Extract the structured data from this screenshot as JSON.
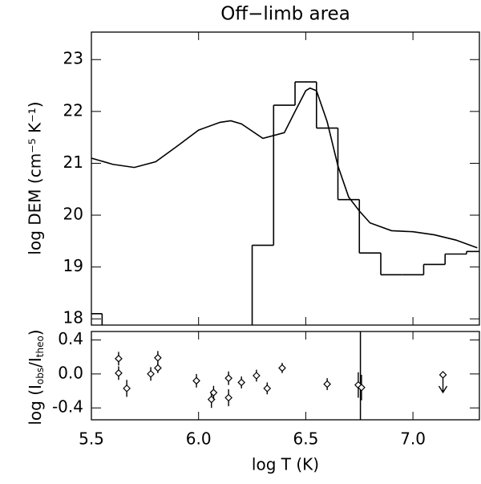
{
  "chart_data": [
    {
      "type": "line",
      "title": "Off−limb area",
      "ylabel": "log DEM (cm⁻⁵ K⁻¹)",
      "xlim": [
        5.5,
        7.31
      ],
      "ylim": [
        17.88,
        23.53
      ],
      "yticks": [
        18,
        19,
        20,
        21,
        22,
        23
      ],
      "color": "#000000",
      "series": [
        {
          "x": [
            5.5,
            5.6,
            5.7,
            5.8,
            5.9,
            6.0,
            6.1,
            6.15,
            6.2,
            6.3,
            6.4,
            6.45,
            6.5,
            6.52,
            6.55,
            6.6,
            6.65,
            6.7,
            6.75,
            6.8,
            6.9,
            7.0,
            7.1,
            7.2,
            7.3
          ],
          "values": [
            21.1,
            20.98,
            20.92,
            21.03,
            21.33,
            21.64,
            21.79,
            21.82,
            21.76,
            21.48,
            21.59,
            22.0,
            22.4,
            22.45,
            22.4,
            21.8,
            20.95,
            20.35,
            20.08,
            19.85,
            19.7,
            19.68,
            19.62,
            19.52,
            19.37
          ]
        },
        {
          "bins": [
            5.45,
            5.55,
            5.65,
            5.75,
            5.85,
            5.95,
            6.05,
            6.15,
            6.25,
            6.35,
            6.45,
            6.55,
            6.65,
            6.75,
            6.85,
            6.95,
            7.05,
            7.15,
            7.25,
            7.35
          ],
          "values": [
            18.1,
            null,
            null,
            null,
            null,
            null,
            null,
            null,
            19.42,
            22.12,
            22.57,
            21.68,
            20.3,
            19.27,
            18.85,
            18.85,
            19.05,
            19.25,
            19.3
          ]
        }
      ]
    },
    {
      "type": "scatter",
      "xlabel": "log T (K)",
      "ylabel": [
        "log (I",
        "obs",
        "/I",
        "theo",
        ")"
      ],
      "xlim": [
        5.5,
        7.31
      ],
      "ylim": [
        -0.54,
        0.5
      ],
      "xticks": [
        5.5,
        {
          "value": 6,
          "label": "6.0"
        },
        6.5,
        {
          "value": 7,
          "label": "7.0"
        }
      ],
      "yticks": [
        0.4,
        {
          "value": 0,
          "label": "0.0"
        },
        -0.4
      ],
      "vline": 6.755,
      "series": [
        {
          "x": [
            5.627,
            5.627,
            5.665,
            5.777,
            5.81,
            5.81,
            5.99,
            6.06,
            6.07,
            6.14,
            6.14,
            6.2,
            6.27,
            6.32,
            6.39,
            6.6,
            6.745,
            6.76
          ],
          "values": [
            0.18,
            0.01,
            -0.17,
            0.0,
            0.07,
            0.19,
            -0.08,
            -0.3,
            -0.22,
            -0.05,
            -0.28,
            -0.1,
            -0.02,
            -0.17,
            0.07,
            -0.12,
            -0.13,
            -0.16
          ],
          "errors": [
            0.08,
            0.08,
            0.1,
            0.08,
            0.06,
            0.08,
            0.08,
            0.1,
            0.08,
            0.08,
            0.1,
            0.07,
            0.07,
            0.07,
            0.06,
            0.07,
            0.15,
            0.15
          ]
        },
        {
          "x": [
            7.14
          ],
          "values": [
            -0.01
          ]
        }
      ]
    }
  ]
}
